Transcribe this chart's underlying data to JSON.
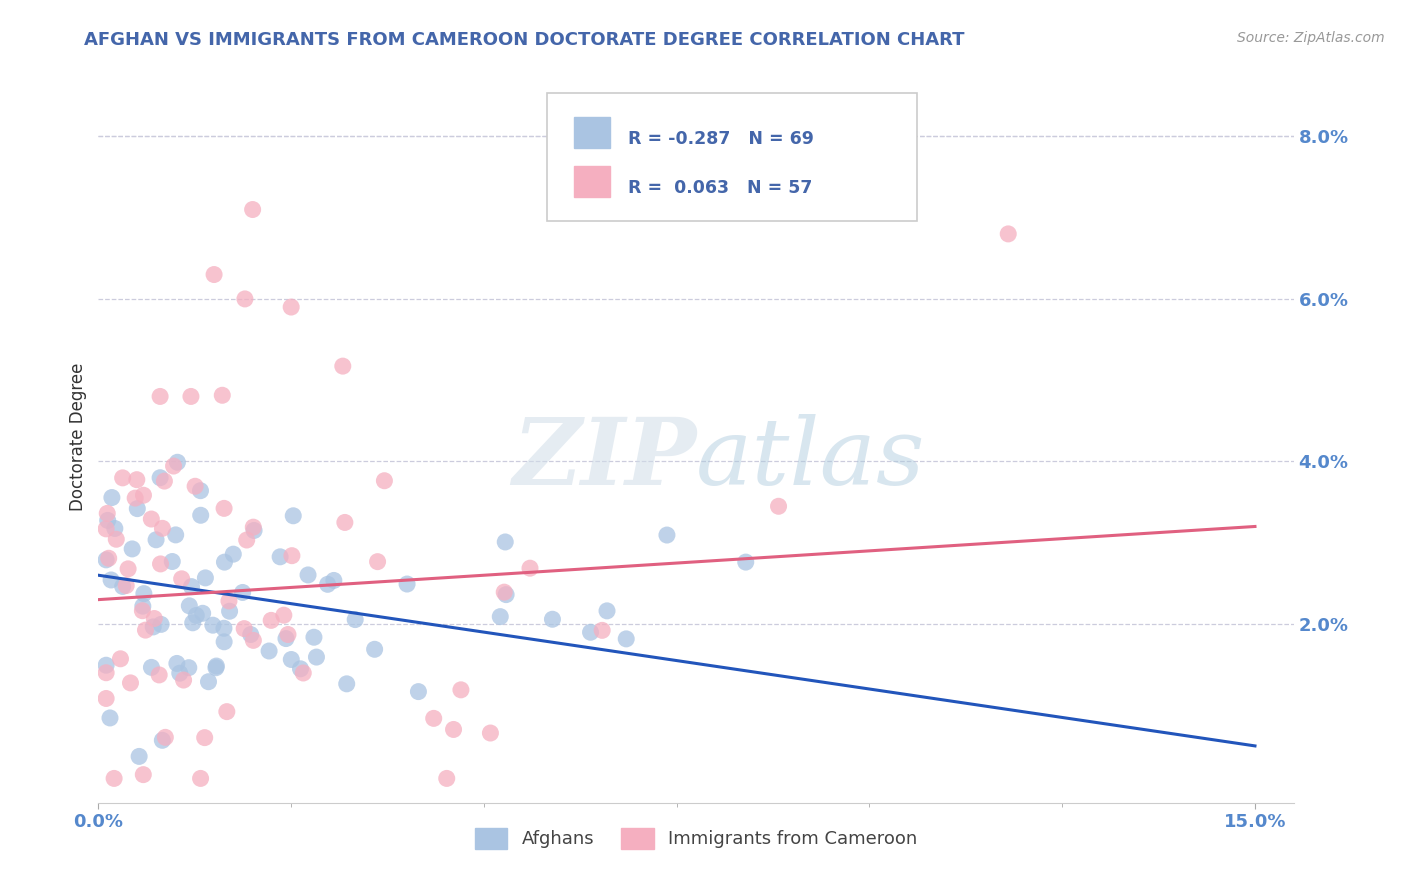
{
  "title": "AFGHAN VS IMMIGRANTS FROM CAMEROON DOCTORATE DEGREE CORRELATION CHART",
  "source": "Source: ZipAtlas.com",
  "ylabel": "Doctorate Degree",
  "ymin": -0.002,
  "ymax": 0.088,
  "xmin": 0.0,
  "xmax": 0.155,
  "afghan_R": -0.287,
  "afghan_N": 69,
  "cameroon_R": 0.063,
  "cameroon_N": 57,
  "afghan_color": "#aac4e2",
  "cameroon_color": "#f5afc0",
  "afghan_line_color": "#2255bb",
  "cameroon_line_color": "#e06080",
  "legend_label_afghan": "Afghans",
  "legend_label_cameroon": "Immigrants from Cameroon",
  "watermark": "ZIPatlas",
  "title_color": "#4466aa",
  "source_color": "#999999",
  "axis_tick_color": "#5588cc",
  "ylabel_color": "#333333",
  "ytick_vals": [
    0.0,
    0.02,
    0.04,
    0.06,
    0.08
  ],
  "ytick_labels": [
    "",
    "2.0%",
    "4.0%",
    "6.0%",
    "8.0%"
  ],
  "afghan_line_x0": 0.0,
  "afghan_line_y0": 0.026,
  "afghan_line_x1": 0.15,
  "afghan_line_y1": 0.005,
  "cameroon_line_x0": 0.0,
  "cameroon_line_y0": 0.023,
  "cameroon_line_x1": 0.15,
  "cameroon_line_y1": 0.032
}
